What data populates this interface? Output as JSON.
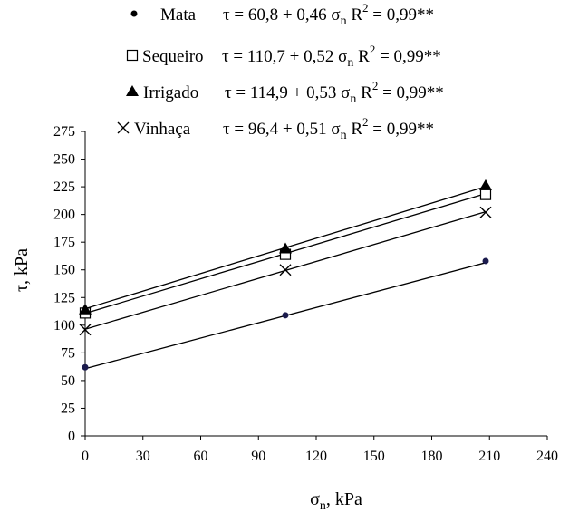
{
  "chart_data": {
    "type": "scatter",
    "xlabel": "σn, kPa",
    "ylabel": "τ, kPa",
    "xlim": [
      0,
      240
    ],
    "ylim": [
      0,
      275
    ],
    "x_ticks": [
      "0",
      "30",
      "60",
      "90",
      "120",
      "150",
      "180",
      "210",
      "240"
    ],
    "y_ticks": [
      "0",
      "25",
      "50",
      "75",
      "100",
      "125",
      "150",
      "175",
      "200",
      "225",
      "250",
      "275"
    ],
    "grid": false,
    "legend_position": "top",
    "series": [
      {
        "name": "Mata",
        "marker": "circle",
        "color": "#1b1b4d",
        "equation": {
          "lhs": "τ",
          "rhs": "60,8 + 0,46",
          "var": "σ",
          "var_sub": "n"
        },
        "r2": "= 0,99**",
        "intercept": 60.8,
        "slope": 0.46,
        "points": [
          {
            "x": 0,
            "y": 62
          },
          {
            "x": 104,
            "y": 109
          },
          {
            "x": 208,
            "y": 158
          }
        ]
      },
      {
        "name": "Sequeiro",
        "marker": "square-open",
        "color": "#000000",
        "equation": {
          "lhs": "τ",
          "rhs": "110,7 + 0,52",
          "var": "σ",
          "var_sub": "n"
        },
        "r2": "= 0,99**",
        "intercept": 110.7,
        "slope": 0.52,
        "points": [
          {
            "x": 0,
            "y": 111
          },
          {
            "x": 104,
            "y": 164
          },
          {
            "x": 208,
            "y": 218
          }
        ]
      },
      {
        "name": "Irrigado",
        "marker": "triangle",
        "color": "#000000",
        "equation": {
          "lhs": "τ",
          "rhs": "114,9 + 0,53",
          "var": "σ",
          "var_sub": "n"
        },
        "r2": "= 0,99**",
        "intercept": 114.9,
        "slope": 0.53,
        "points": [
          {
            "x": 0,
            "y": 114
          },
          {
            "x": 104,
            "y": 169
          },
          {
            "x": 208,
            "y": 226
          }
        ]
      },
      {
        "name": "Vinhaça",
        "marker": "x",
        "color": "#000000",
        "equation": {
          "lhs": "τ",
          "rhs": "96,4 + 0,51",
          "var": "σ",
          "var_sub": "n"
        },
        "r2": "= 0,99**",
        "intercept": 96.4,
        "slope": 0.51,
        "points": [
          {
            "x": 0,
            "y": 96
          },
          {
            "x": 104,
            "y": 150
          },
          {
            "x": 208,
            "y": 202
          }
        ]
      }
    ]
  }
}
